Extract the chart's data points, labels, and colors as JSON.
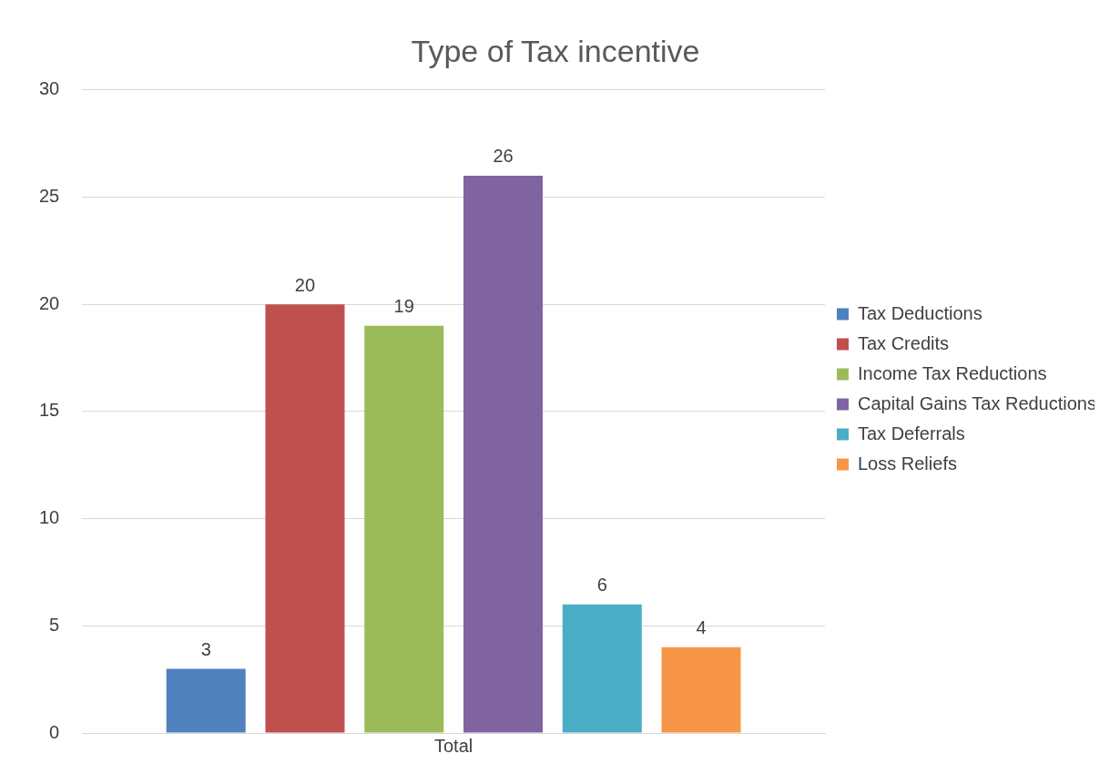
{
  "chart_data": {
    "type": "bar",
    "title": "Type of Tax incentive",
    "categories": [
      "Total"
    ],
    "series": [
      {
        "name": "Tax Deductions",
        "color": "#4f81bd",
        "values": [
          3
        ]
      },
      {
        "name": "Tax Credits",
        "color": "#c0504d",
        "values": [
          20
        ]
      },
      {
        "name": "Income Tax Reductions",
        "color": "#9bbb59",
        "values": [
          19
        ]
      },
      {
        "name": "Capital Gains Tax Reductions",
        "color": "#8064a2",
        "values": [
          26
        ]
      },
      {
        "name": "Tax Deferrals",
        "color": "#4bacc6",
        "values": [
          6
        ]
      },
      {
        "name": "Loss Reliefs",
        "color": "#f79646",
        "values": [
          4
        ]
      }
    ],
    "ylim": [
      0,
      30
    ],
    "yticks": [
      0,
      5,
      10,
      15,
      20,
      25,
      30
    ],
    "grid": "y",
    "legend": "right",
    "data_labels": true
  }
}
